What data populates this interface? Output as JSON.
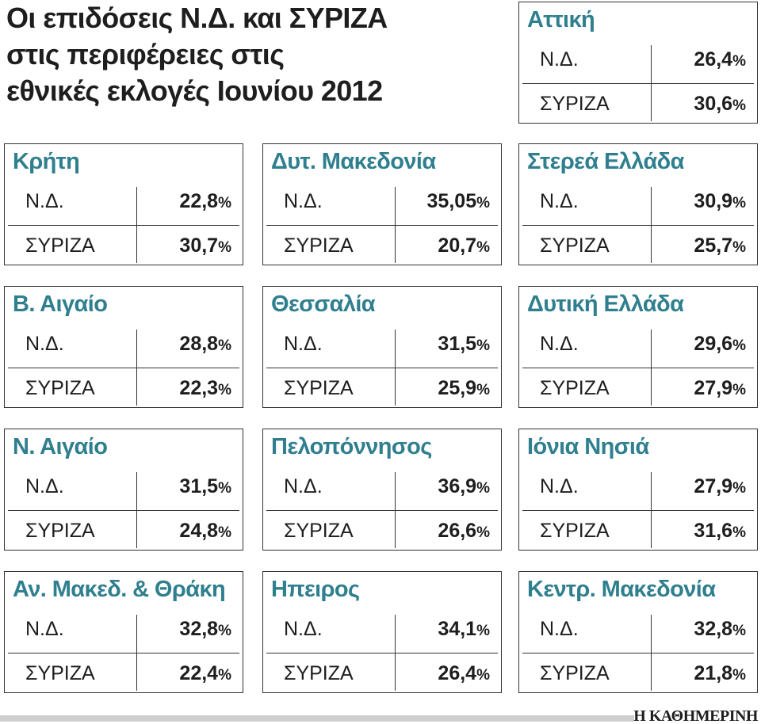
{
  "header": {
    "title_lines": [
      "Οι επιδόσεις Ν.Δ. και ΣΥΡΙΖΑ",
      "στις περιφέρειες στις",
      "εθνικές εκλογές Ιουνίου 2012"
    ]
  },
  "regions": [
    {
      "name": "Αττική",
      "rows": [
        {
          "party": "Ν.Δ.",
          "value": "26,4",
          "unit": "%"
        },
        {
          "party": "ΣΥΡΙΖΑ",
          "value": "30,6",
          "unit": "%"
        }
      ]
    },
    {
      "name": "Κρήτη",
      "rows": [
        {
          "party": "Ν.Δ.",
          "value": "22,8",
          "unit": "%"
        },
        {
          "party": "ΣΥΡΙΖΑ",
          "value": "30,7",
          "unit": "%"
        }
      ]
    },
    {
      "name": "Δυτ. Μακεδονία",
      "rows": [
        {
          "party": "Ν.Δ.",
          "value": "35,05",
          "unit": "%"
        },
        {
          "party": "ΣΥΡΙΖΑ",
          "value": "20,7",
          "unit": "%"
        }
      ]
    },
    {
      "name": "Στερεά Ελλάδα",
      "rows": [
        {
          "party": "Ν.Δ.",
          "value": "30,9",
          "unit": "%"
        },
        {
          "party": "ΣΥΡΙΖΑ",
          "value": "25,7",
          "unit": "%"
        }
      ]
    },
    {
      "name": "Β. Αιγαίο",
      "rows": [
        {
          "party": "Ν.Δ.",
          "value": "28,8",
          "unit": "%"
        },
        {
          "party": "ΣΥΡΙΖΑ",
          "value": "22,3",
          "unit": "%"
        }
      ]
    },
    {
      "name": "Θεσσαλία",
      "rows": [
        {
          "party": "Ν.Δ.",
          "value": "31,5",
          "unit": "%"
        },
        {
          "party": "ΣΥΡΙΖΑ",
          "value": "25,9",
          "unit": "%"
        }
      ]
    },
    {
      "name": "Δυτική Ελλάδα",
      "rows": [
        {
          "party": "Ν.Δ.",
          "value": "29,6",
          "unit": "%"
        },
        {
          "party": "ΣΥΡΙΖΑ",
          "value": "27,9",
          "unit": "%"
        }
      ]
    },
    {
      "name": "Ν. Αιγαίο",
      "rows": [
        {
          "party": "Ν.Δ.",
          "value": "31,5",
          "unit": "%"
        },
        {
          "party": "ΣΥΡΙΖΑ",
          "value": "24,8",
          "unit": "%"
        }
      ]
    },
    {
      "name": "Πελοπόννησος",
      "rows": [
        {
          "party": "Ν.Δ.",
          "value": "36,9",
          "unit": "%"
        },
        {
          "party": "ΣΥΡΙΖΑ",
          "value": "26,6",
          "unit": "%"
        }
      ]
    },
    {
      "name": "Ιόνια Νησιά",
      "rows": [
        {
          "party": "Ν.Δ.",
          "value": "27,9",
          "unit": "%"
        },
        {
          "party": "ΣΥΡΙΖΑ",
          "value": "31,6",
          "unit": "%"
        }
      ]
    },
    {
      "name": "Αν. Μακεδ. & Θράκη",
      "rows": [
        {
          "party": "Ν.Δ.",
          "value": "32,8",
          "unit": "%"
        },
        {
          "party": "ΣΥΡΙΖΑ",
          "value": "22,4",
          "unit": "%"
        }
      ]
    },
    {
      "name": "Ηπειρος",
      "rows": [
        {
          "party": "Ν.Δ.",
          "value": "34,1",
          "unit": "%"
        },
        {
          "party": "ΣΥΡΙΖΑ",
          "value": "26,4",
          "unit": "%"
        }
      ]
    },
    {
      "name": "Κεντρ. Μακεδονία",
      "rows": [
        {
          "party": "Ν.Δ.",
          "value": "32,8",
          "unit": "%"
        },
        {
          "party": "ΣΥΡΙΖΑ",
          "value": "21,8",
          "unit": "%"
        }
      ]
    }
  ],
  "footer": {
    "source": "Η ΚΑΘΗΜΕΡΙΝΗ"
  }
}
